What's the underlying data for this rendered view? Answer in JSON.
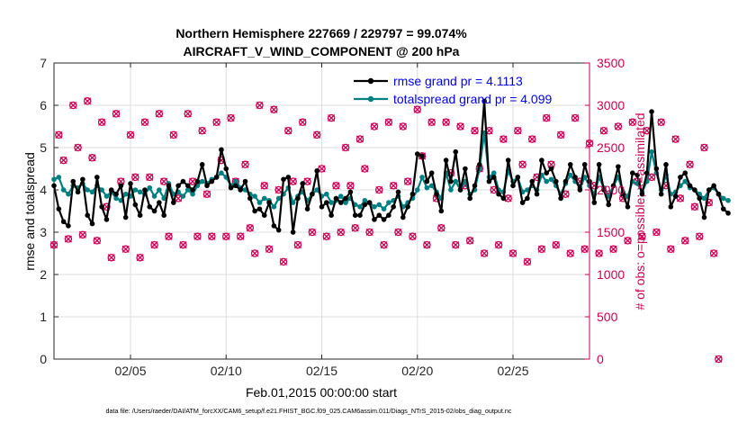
{
  "chart_data": {
    "type": "line",
    "title_line1": "Northern Hemisphere 227669 / 229797 = 99.074%",
    "title_line2": "AIRCRAFT_V_WIND_COMPONENT @ 200 hPa",
    "xlabel": "Feb.01,2015 00:00:00 start",
    "ylabel_left": "rmse and totalspread",
    "ylabel_right": "# of obs: o=possible; ×=assimilated",
    "footer": "data file: /Users/raeder/DAI/ATM_forcXX/CAM6_setup/f.e21.FHIST_BGC.f09_025.CAM6assim.011/Diags_NTrS_2015-02/obs_diag_output.nc",
    "xlim": [
      1,
      29
    ],
    "xticks": [
      {
        "x": 5,
        "label": "02/05"
      },
      {
        "x": 10,
        "label": "02/10"
      },
      {
        "x": 15,
        "label": "02/15"
      },
      {
        "x": 20,
        "label": "02/20"
      },
      {
        "x": 25,
        "label": "02/25"
      }
    ],
    "ylim_left": [
      0,
      7
    ],
    "yticks_left": [
      "0",
      "1",
      "2",
      "3",
      "4",
      "5",
      "6",
      "7"
    ],
    "ylim_right": [
      0,
      3500
    ],
    "yticks_right": [
      "0",
      "500",
      "1000",
      "1500",
      "2000",
      "2500",
      "3000",
      "3500"
    ],
    "legend_position": "top-right",
    "colors": {
      "rmse": "#000000",
      "spread": "#008080",
      "obs": "#cc0055",
      "axis_right": "#cc0055",
      "legend_text": "#0000ee",
      "grid": "#dddddd"
    },
    "series": [
      {
        "name": "rmse grand pr = 4.1113",
        "key": "rmse",
        "x_start": 1.0,
        "x_step": 0.25,
        "values": [
          4.1,
          3.55,
          3.25,
          3.15,
          4.2,
          3.95,
          4.25,
          3.4,
          3.2,
          4.3,
          3.6,
          3.3,
          4.0,
          3.9,
          4.1,
          3.35,
          4.15,
          3.65,
          3.4,
          4.0,
          3.6,
          3.5,
          3.7,
          3.4,
          4.1,
          3.7,
          4.1,
          4.2,
          4.1,
          4.0,
          4.2,
          4.6,
          4.1,
          4.2,
          4.3,
          4.95,
          4.5,
          4.05,
          4.1,
          4.0,
          4.2,
          3.8,
          3.5,
          3.55,
          3.4,
          3.7,
          3.15,
          3.05,
          4.25,
          4.3,
          3.0,
          3.8,
          4.15,
          3.55,
          3.9,
          4.45,
          3.6,
          3.7,
          3.4,
          3.8,
          3.7,
          3.8,
          3.95,
          3.4,
          3.4,
          3.65,
          3.7,
          3.3,
          3.4,
          3.3,
          3.4,
          3.6,
          3.95,
          3.35,
          3.6,
          3.9,
          4.85,
          4.8,
          4.2,
          4.4,
          3.9,
          3.5,
          4.7,
          4.2,
          4.9,
          4.0,
          4.5,
          3.8,
          4.1,
          4.6,
          6.1,
          4.2,
          4.3,
          3.9,
          3.8,
          4.7,
          4.1,
          4.3,
          3.7,
          3.8,
          4.2,
          3.9,
          4.7,
          4.4,
          4.5,
          4.2,
          3.8,
          4.2,
          4.6,
          4.3,
          4.0,
          4.6,
          4.2,
          3.7,
          4.6,
          4.0,
          3.65,
          4.1,
          4.55,
          3.9,
          3.6,
          4.4,
          4.35,
          3.9,
          4.4,
          5.85,
          4.5,
          3.9,
          4.6,
          3.6,
          3.85,
          4.3,
          4.4,
          4.1,
          4.0,
          3.8,
          3.35,
          4.0,
          4.1,
          3.9,
          3.55,
          3.45
        ]
      },
      {
        "name": "totalspread grand pr = 4.099",
        "key": "spread",
        "x_start": 1.0,
        "x_step": 0.25,
        "values": [
          4.25,
          4.3,
          4.0,
          3.9,
          4.1,
          4.05,
          4.15,
          4.0,
          3.95,
          4.1,
          4.0,
          3.85,
          3.95,
          3.8,
          3.75,
          3.9,
          3.85,
          4.0,
          3.95,
          3.9,
          4.05,
          3.85,
          4.0,
          3.8,
          4.15,
          3.9,
          3.95,
          3.85,
          4.0,
          3.9,
          4.1,
          4.2,
          4.15,
          4.25,
          4.3,
          4.4,
          4.3,
          4.1,
          4.2,
          4.05,
          4.0,
          3.9,
          3.85,
          3.7,
          3.8,
          3.75,
          3.6,
          3.8,
          3.9,
          4.05,
          3.7,
          3.85,
          3.95,
          3.75,
          3.9,
          4.0,
          3.85,
          3.9,
          3.7,
          3.75,
          3.85,
          3.7,
          3.8,
          3.65,
          3.6,
          3.75,
          3.7,
          3.6,
          3.65,
          3.55,
          3.7,
          3.75,
          3.85,
          3.6,
          3.7,
          3.8,
          4.0,
          4.3,
          4.05,
          4.1,
          3.95,
          3.8,
          4.4,
          4.0,
          4.2,
          4.0,
          4.2,
          3.9,
          4.0,
          4.5,
          5.35,
          4.3,
          4.4,
          4.0,
          3.95,
          4.45,
          4.2,
          4.3,
          3.95,
          4.0,
          4.1,
          4.0,
          4.35,
          4.2,
          4.25,
          4.1,
          3.9,
          4.15,
          4.35,
          4.2,
          4.05,
          4.3,
          4.1,
          3.9,
          4.3,
          4.05,
          3.85,
          4.1,
          4.3,
          3.95,
          3.85,
          4.2,
          4.15,
          3.95,
          4.2,
          4.9,
          4.4,
          4.0,
          4.35,
          3.9,
          3.95,
          4.1,
          4.2,
          4.05,
          4.0,
          3.9,
          3.8,
          4.0,
          4.05,
          3.9,
          3.8,
          3.75
        ]
      },
      {
        "name": "possible obs count",
        "key": "obs",
        "x_start": 1.0,
        "x_step": 0.25,
        "values": [
          1350,
          2650,
          2350,
          1420,
          3000,
          2500,
          1470,
          3050,
          2380,
          1400,
          2800,
          1800,
          1200,
          2900,
          2100,
          1300,
          2650,
          2150,
          1200,
          2800,
          2150,
          1350,
          2900,
          2100,
          1450,
          2650,
          1900,
          1350,
          2900,
          2100,
          1450,
          2700,
          1950,
          1450,
          2800,
          2350,
          1450,
          2850,
          2100,
          1450,
          2300,
          1550,
          1250,
          3000,
          2050,
          1300,
          2950,
          2000,
          1150,
          2700,
          2100,
          1350,
          2800,
          2100,
          1500,
          2650,
          2250,
          1450,
          2850,
          2050,
          1500,
          2500,
          2050,
          1550,
          2600,
          2250,
          1500,
          2750,
          2000,
          1350,
          2800,
          2050,
          1500,
          2750,
          2100,
          1450,
          2950,
          2400,
          1350,
          2800,
          1900,
          1550,
          2800,
          2200,
          1350,
          2750,
          2050,
          1400,
          2700,
          2250,
          1250,
          2700,
          2000,
          1350,
          2600,
          1900,
          1250,
          2700,
          2300,
          1150,
          2600,
          2150,
          1300,
          2850,
          2300,
          1350,
          2650,
          1950,
          1250,
          2850,
          2100,
          1300,
          2550,
          2050,
          1250,
          2700,
          1950,
          1300,
          2750,
          1900,
          1400,
          2800,
          2100,
          1450,
          2700,
          2150,
          1500,
          2800,
          2050,
          1300,
          2600,
          1900,
          1400,
          2300,
          1800,
          1450,
          2500,
          1850,
          1250,
          0
        ]
      }
    ]
  }
}
